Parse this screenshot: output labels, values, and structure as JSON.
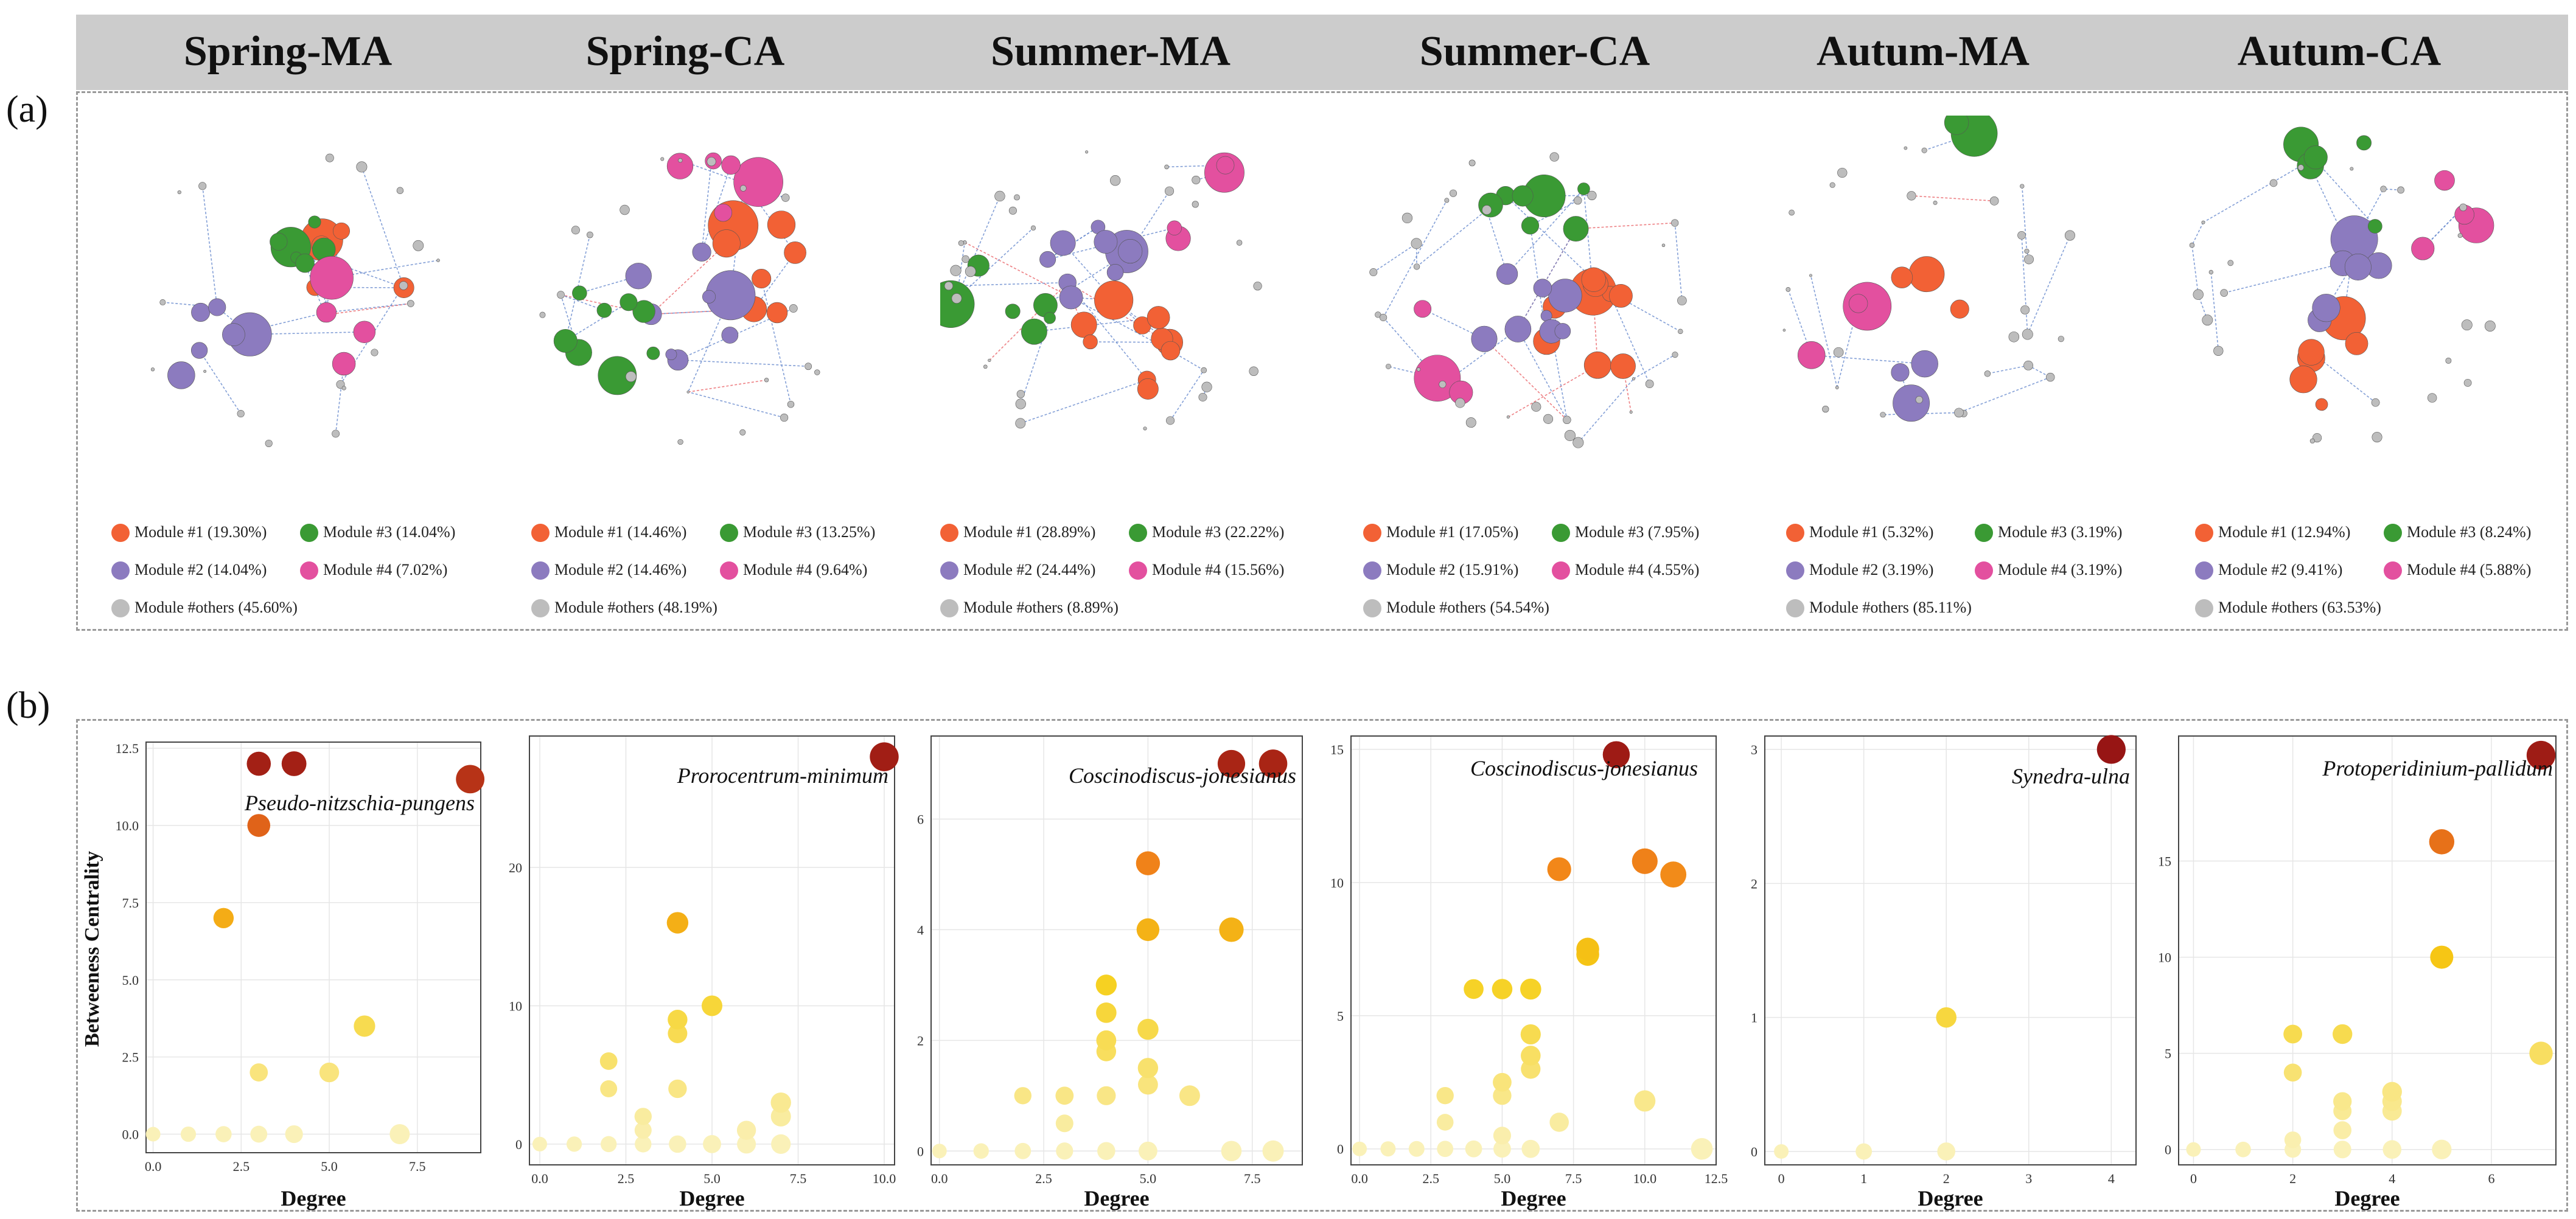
{
  "panel_labels": {
    "a": "(a)",
    "b": "(b)"
  },
  "colors": {
    "module1": "#f26135",
    "module2": "#8c7bbf",
    "module3": "#3a9a34",
    "module4": "#e3509f",
    "others": "#bdbdbd"
  },
  "networks": [
    {
      "title": "Spring-MA",
      "legend": {
        "m1": "Module #1 (19.30%)",
        "m2": "Module #2 (14.04%)",
        "m3": "Module #3 (14.04%)",
        "m4": "Module #4 (7.02%)",
        "others": "Module #others (45.60%)"
      }
    },
    {
      "title": "Spring-CA",
      "legend": {
        "m1": "Module #1 (14.46%)",
        "m2": "Module #2 (14.46%)",
        "m3": "Module #3 (13.25%)",
        "m4": "Module #4 (9.64%)",
        "others": "Module #others (48.19%)"
      }
    },
    {
      "title": "Summer-MA",
      "legend": {
        "m1": "Module #1 (28.89%)",
        "m2": "Module #2 (24.44%)",
        "m3": "Module #3 (22.22%)",
        "m4": "Module #4 (15.56%)",
        "others": "Module #others (8.89%)"
      }
    },
    {
      "title": "Summer-CA",
      "legend": {
        "m1": "Module #1 (17.05%)",
        "m2": "Module #2 (15.91%)",
        "m3": "Module #3 (7.95%)",
        "m4": "Module #4 (4.55%)",
        "others": "Module #others (54.54%)"
      }
    },
    {
      "title": "Autum-MA",
      "legend": {
        "m1": "Module #1 (5.32%)",
        "m2": "Module #2 (3.19%)",
        "m3": "Module #3 (3.19%)",
        "m4": "Module #4 (3.19%)",
        "others": "Module #others (85.11%)"
      }
    },
    {
      "title": "Autum-CA",
      "legend": {
        "m1": "Module #1 (12.94%)",
        "m2": "Module #2 (9.41%)",
        "m3": "Module #3 (8.24%)",
        "m4": "Module #4 (5.88%)",
        "others": "Module #others (63.53%)"
      }
    }
  ],
  "chart_data": [
    {
      "type": "scatter",
      "xlabel": "Degree",
      "ylabel": "Betweeness Centrality",
      "xlim": [
        -0.2,
        9.3
      ],
      "ylim": [
        -0.6,
        12.7
      ],
      "xticks": [
        "0.0",
        "2.5",
        "5.0",
        "7.5"
      ],
      "xtick_values": [
        0,
        2.5,
        5,
        7.5
      ],
      "yticks": [
        "0.0",
        "2.5",
        "5.0",
        "7.5",
        "10.0",
        "12.5"
      ],
      "ytick_values": [
        0,
        2.5,
        5,
        7.5,
        10,
        12.5
      ],
      "annotation": "Pseudo-nitzschia-pungens",
      "points": [
        {
          "x": 0,
          "y": 0
        },
        {
          "x": 1,
          "y": 0
        },
        {
          "x": 2,
          "y": 0
        },
        {
          "x": 3,
          "y": 0
        },
        {
          "x": 4,
          "y": 0
        },
        {
          "x": 7,
          "y": 0
        },
        {
          "x": 3,
          "y": 2
        },
        {
          "x": 5,
          "y": 2
        },
        {
          "x": 6,
          "y": 3.5
        },
        {
          "x": 2,
          "y": 7
        },
        {
          "x": 3,
          "y": 10
        },
        {
          "x": 3,
          "y": 12
        },
        {
          "x": 4,
          "y": 12
        },
        {
          "x": 9,
          "y": 11.5
        }
      ]
    },
    {
      "type": "scatter",
      "xlabel": "Degree",
      "ylabel": "",
      "xlim": [
        -0.3,
        10.3
      ],
      "ylim": [
        -1.5,
        29.5
      ],
      "xticks": [
        "0.0",
        "2.5",
        "5.0",
        "7.5",
        "10.0"
      ],
      "xtick_values": [
        0,
        2.5,
        5,
        7.5,
        10
      ],
      "yticks": [
        "0",
        "10",
        "20"
      ],
      "ytick_values": [
        0,
        10,
        20
      ],
      "annotation": "Prorocentrum-minimum",
      "points": [
        {
          "x": 0,
          "y": 0
        },
        {
          "x": 1,
          "y": 0
        },
        {
          "x": 2,
          "y": 0
        },
        {
          "x": 3,
          "y": 0
        },
        {
          "x": 4,
          "y": 0
        },
        {
          "x": 5,
          "y": 0
        },
        {
          "x": 6,
          "y": 0
        },
        {
          "x": 7,
          "y": 0
        },
        {
          "x": 3,
          "y": 1
        },
        {
          "x": 6,
          "y": 1
        },
        {
          "x": 3,
          "y": 2
        },
        {
          "x": 7,
          "y": 2
        },
        {
          "x": 7,
          "y": 3
        },
        {
          "x": 2,
          "y": 4
        },
        {
          "x": 4,
          "y": 4
        },
        {
          "x": 2,
          "y": 6
        },
        {
          "x": 4,
          "y": 8
        },
        {
          "x": 4,
          "y": 9
        },
        {
          "x": 5,
          "y": 10
        },
        {
          "x": 4,
          "y": 16
        },
        {
          "x": 10,
          "y": 28
        }
      ]
    },
    {
      "type": "scatter",
      "xlabel": "Degree",
      "ylabel": "",
      "xlim": [
        -0.2,
        8.7
      ],
      "ylim": [
        -0.25,
        7.5
      ],
      "xticks": [
        "0.0",
        "2.5",
        "5.0",
        "7.5"
      ],
      "xtick_values": [
        0,
        2.5,
        5,
        7.5
      ],
      "yticks": [
        "0",
        "2",
        "4",
        "6"
      ],
      "ytick_values": [
        0,
        2,
        4,
        6
      ],
      "annotation": "Coscinodiscus-jonesianus",
      "points": [
        {
          "x": 0,
          "y": 0
        },
        {
          "x": 1,
          "y": 0
        },
        {
          "x": 2,
          "y": 0
        },
        {
          "x": 3,
          "y": 0
        },
        {
          "x": 4,
          "y": 0
        },
        {
          "x": 5,
          "y": 0
        },
        {
          "x": 7,
          "y": 0
        },
        {
          "x": 8,
          "y": 0
        },
        {
          "x": 3,
          "y": 0.5
        },
        {
          "x": 2,
          "y": 1
        },
        {
          "x": 3,
          "y": 1
        },
        {
          "x": 4,
          "y": 1
        },
        {
          "x": 6,
          "y": 1
        },
        {
          "x": 5,
          "y": 1.2
        },
        {
          "x": 5,
          "y": 1.5
        },
        {
          "x": 4,
          "y": 1.8
        },
        {
          "x": 4,
          "y": 2
        },
        {
          "x": 5,
          "y": 2.2
        },
        {
          "x": 4,
          "y": 2.5
        },
        {
          "x": 4,
          "y": 3
        },
        {
          "x": 5,
          "y": 4
        },
        {
          "x": 7,
          "y": 4
        },
        {
          "x": 5,
          "y": 5.2
        },
        {
          "x": 7,
          "y": 7
        },
        {
          "x": 8,
          "y": 7
        }
      ]
    },
    {
      "type": "scatter",
      "xlabel": "Degree",
      "ylabel": "",
      "xlim": [
        -0.3,
        12.5
      ],
      "ylim": [
        -0.6,
        15.5
      ],
      "xticks": [
        "0.0",
        "2.5",
        "5.0",
        "7.5",
        "10.0",
        "12.5"
      ],
      "xtick_values": [
        0,
        2.5,
        5,
        7.5,
        10,
        12.5
      ],
      "yticks": [
        "0",
        "5",
        "10",
        "15"
      ],
      "ytick_values": [
        0,
        5,
        10,
        15
      ],
      "annotation": "Coscinodiscus-jonesianus",
      "points": [
        {
          "x": 0,
          "y": 0
        },
        {
          "x": 1,
          "y": 0
        },
        {
          "x": 2,
          "y": 0
        },
        {
          "x": 3,
          "y": 0
        },
        {
          "x": 4,
          "y": 0
        },
        {
          "x": 5,
          "y": 0
        },
        {
          "x": 6,
          "y": 0
        },
        {
          "x": 12,
          "y": 0
        },
        {
          "x": 5,
          "y": 0.5
        },
        {
          "x": 3,
          "y": 1
        },
        {
          "x": 7,
          "y": 1
        },
        {
          "x": 3,
          "y": 2
        },
        {
          "x": 5,
          "y": 2
        },
        {
          "x": 5,
          "y": 2.5
        },
        {
          "x": 10,
          "y": 1.8
        },
        {
          "x": 6,
          "y": 3
        },
        {
          "x": 6,
          "y": 3.5
        },
        {
          "x": 6,
          "y": 4.3
        },
        {
          "x": 4,
          "y": 6
        },
        {
          "x": 5,
          "y": 6
        },
        {
          "x": 6,
          "y": 6
        },
        {
          "x": 8,
          "y": 7.3
        },
        {
          "x": 8,
          "y": 7.5
        },
        {
          "x": 7,
          "y": 10.5
        },
        {
          "x": 10,
          "y": 10.8
        },
        {
          "x": 11,
          "y": 10.3
        },
        {
          "x": 9,
          "y": 14.8
        }
      ]
    },
    {
      "type": "scatter",
      "xlabel": "Degree",
      "ylabel": "",
      "xlim": [
        -0.2,
        4.3
      ],
      "ylim": [
        -0.1,
        3.1
      ],
      "xticks": [
        "0",
        "1",
        "2",
        "3",
        "4"
      ],
      "xtick_values": [
        0,
        1,
        2,
        3,
        4
      ],
      "yticks": [
        "0",
        "1",
        "2",
        "3"
      ],
      "ytick_values": [
        0,
        1,
        2,
        3
      ],
      "annotation": "Synedra-ulna",
      "points": [
        {
          "x": 0,
          "y": 0
        },
        {
          "x": 1,
          "y": 0
        },
        {
          "x": 2,
          "y": 0
        },
        {
          "x": 2,
          "y": 1
        },
        {
          "x": 4,
          "y": 3
        }
      ]
    },
    {
      "type": "scatter",
      "xlabel": "Degree",
      "ylabel": "",
      "xlim": [
        -0.3,
        7.3
      ],
      "ylim": [
        -0.8,
        21.5
      ],
      "xticks": [
        "0",
        "2",
        "4",
        "6"
      ],
      "xtick_values": [
        0,
        2,
        4,
        6
      ],
      "yticks": [
        "0",
        "5",
        "10",
        "15"
      ],
      "ytick_values": [
        0,
        5,
        10,
        15
      ],
      "annotation": "Protoperidinium-pallidum",
      "points": [
        {
          "x": 0,
          "y": 0
        },
        {
          "x": 1,
          "y": 0
        },
        {
          "x": 2,
          "y": 0
        },
        {
          "x": 3,
          "y": 0
        },
        {
          "x": 4,
          "y": 0
        },
        {
          "x": 5,
          "y": 0
        },
        {
          "x": 2,
          "y": 0.5
        },
        {
          "x": 3,
          "y": 1
        },
        {
          "x": 3,
          "y": 2
        },
        {
          "x": 4,
          "y": 2
        },
        {
          "x": 3,
          "y": 2.5
        },
        {
          "x": 4,
          "y": 2.5
        },
        {
          "x": 4,
          "y": 3
        },
        {
          "x": 2,
          "y": 4
        },
        {
          "x": 7,
          "y": 5
        },
        {
          "x": 2,
          "y": 6
        },
        {
          "x": 3,
          "y": 6
        },
        {
          "x": 5,
          "y": 10
        },
        {
          "x": 5,
          "y": 16
        },
        {
          "x": 7,
          "y": 20.5
        }
      ]
    }
  ]
}
